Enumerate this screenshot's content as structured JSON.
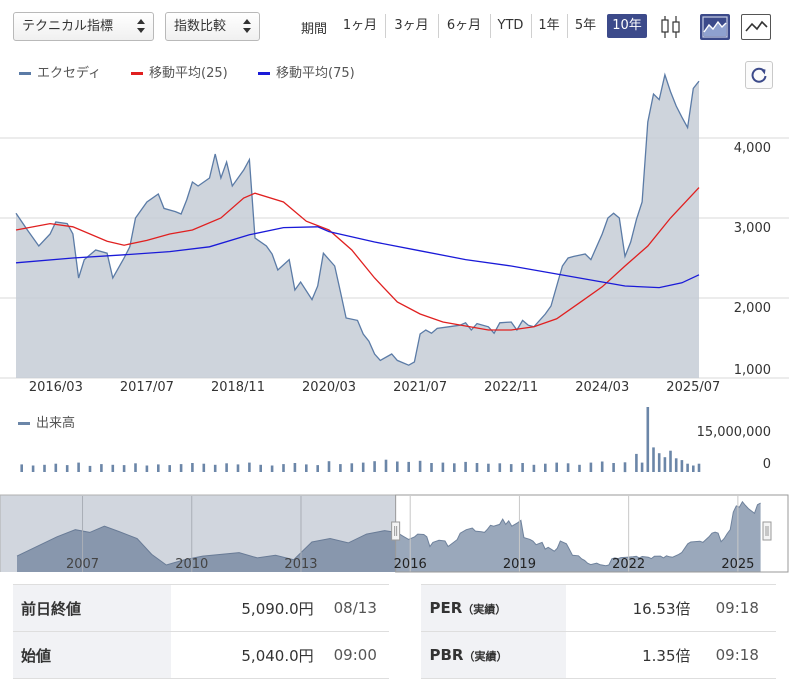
{
  "toolbar": {
    "indicator_dropdown": "テクニカル指標",
    "compare_dropdown": "指数比較",
    "period_label": "期間",
    "periods": [
      "1ヶ月",
      "3ヶ月",
      "6ヶ月",
      "YTD",
      "1年",
      "5年",
      "10年"
    ],
    "active_period": "10年",
    "chart_type_icons": [
      "candlestick-icon",
      "area-chart-icon",
      "line-chart-icon"
    ]
  },
  "legend": {
    "price": "エクセディ",
    "ma25": "移動平均(25)",
    "ma75": "移動平均(75)"
  },
  "volume_legend": "出来高",
  "colors": {
    "price_line": "#5b7ba6",
    "price_fill": "#c6ccd6",
    "ma25": "#e02020",
    "ma75": "#1a1ad8",
    "volume": "#6b86a8",
    "active_button": "#3c4a8a",
    "navigator_fill": "#9aa8bb"
  },
  "chart_data": {
    "type": "area",
    "x_ticks": [
      "2016/03",
      "2017/07",
      "2018/11",
      "2020/03",
      "2021/07",
      "2022/11",
      "2024/03",
      "2025/07"
    ],
    "x_tick_dates": [
      "2016-03",
      "2017-07",
      "2018-11",
      "2020-03",
      "2021-07",
      "2022-11",
      "2024-03",
      "2025-07"
    ],
    "y_ticks": [
      "1,000",
      "2,000",
      "3,000",
      "4,000"
    ],
    "y_tick_values": [
      1000,
      2000,
      3000,
      4000
    ],
    "y_range": [
      1000,
      4900
    ],
    "x_range": [
      "2015-08",
      "2025-08"
    ],
    "grid": true,
    "series": [
      {
        "name": "エクセディ",
        "type": "area",
        "points": [
          [
            "2015-08",
            3060
          ],
          [
            "2015-10",
            2850
          ],
          [
            "2015-12",
            2650
          ],
          [
            "2016-02",
            2800
          ],
          [
            "2016-03",
            2950
          ],
          [
            "2016-05",
            2930
          ],
          [
            "2016-06",
            2800
          ],
          [
            "2016-07",
            2250
          ],
          [
            "2016-08",
            2480
          ],
          [
            "2016-10",
            2600
          ],
          [
            "2016-12",
            2560
          ],
          [
            "2017-01",
            2250
          ],
          [
            "2017-03",
            2500
          ],
          [
            "2017-04",
            2640
          ],
          [
            "2017-05",
            3000
          ],
          [
            "2017-07",
            3200
          ],
          [
            "2017-09",
            3300
          ],
          [
            "2017-10",
            3120
          ],
          [
            "2017-12",
            3080
          ],
          [
            "2018-01",
            3050
          ],
          [
            "2018-02",
            3230
          ],
          [
            "2018-03",
            3450
          ],
          [
            "2018-04",
            3400
          ],
          [
            "2018-06",
            3500
          ],
          [
            "2018-07",
            3800
          ],
          [
            "2018-08",
            3500
          ],
          [
            "2018-09",
            3700
          ],
          [
            "2018-10",
            3400
          ],
          [
            "2018-12",
            3600
          ],
          [
            "2019-01",
            3730
          ],
          [
            "2019-02",
            2750
          ],
          [
            "2019-04",
            2650
          ],
          [
            "2019-05",
            2550
          ],
          [
            "2019-06",
            2350
          ],
          [
            "2019-08",
            2480
          ],
          [
            "2019-09",
            2100
          ],
          [
            "2019-10",
            2200
          ],
          [
            "2019-12",
            1980
          ],
          [
            "2020-01",
            2150
          ],
          [
            "2020-02",
            2560
          ],
          [
            "2020-04",
            2400
          ],
          [
            "2020-05",
            2080
          ],
          [
            "2020-06",
            1750
          ],
          [
            "2020-08",
            1720
          ],
          [
            "2020-09",
            1550
          ],
          [
            "2020-10",
            1460
          ],
          [
            "2020-11",
            1300
          ],
          [
            "2020-12",
            1220
          ],
          [
            "2021-02",
            1300
          ],
          [
            "2021-03",
            1220
          ],
          [
            "2021-05",
            1160
          ],
          [
            "2021-06",
            1200
          ],
          [
            "2021-07",
            1550
          ],
          [
            "2021-08",
            1600
          ],
          [
            "2021-09",
            1560
          ],
          [
            "2021-10",
            1620
          ],
          [
            "2021-12",
            1640
          ],
          [
            "2022-02",
            1660
          ],
          [
            "2022-03",
            1690
          ],
          [
            "2022-04",
            1600
          ],
          [
            "2022-05",
            1680
          ],
          [
            "2022-07",
            1640
          ],
          [
            "2022-08",
            1560
          ],
          [
            "2022-09",
            1690
          ],
          [
            "2022-11",
            1700
          ],
          [
            "2022-12",
            1600
          ],
          [
            "2023-01",
            1720
          ],
          [
            "2023-02",
            1660
          ],
          [
            "2023-03",
            1640
          ],
          [
            "2023-05",
            1800
          ],
          [
            "2023-06",
            1900
          ],
          [
            "2023-08",
            2400
          ],
          [
            "2023-09",
            2500
          ],
          [
            "2023-10",
            2520
          ],
          [
            "2023-12",
            2550
          ],
          [
            "2024-01",
            2480
          ],
          [
            "2024-03",
            2800
          ],
          [
            "2024-04",
            3000
          ],
          [
            "2024-05",
            3060
          ],
          [
            "2024-06",
            3000
          ],
          [
            "2024-07",
            2520
          ],
          [
            "2024-08",
            2700
          ],
          [
            "2024-09",
            2980
          ],
          [
            "2024-10",
            3200
          ],
          [
            "2024-11",
            4200
          ],
          [
            "2024-12",
            4550
          ],
          [
            "2025-01",
            4480
          ],
          [
            "2025-02",
            4790
          ],
          [
            "2025-03",
            4580
          ],
          [
            "2025-04",
            4400
          ],
          [
            "2025-05",
            4260
          ],
          [
            "2025-06",
            4130
          ],
          [
            "2025-07",
            4620
          ],
          [
            "2025-08",
            4710
          ]
        ]
      },
      {
        "name": "移動平均(25)",
        "type": "line",
        "points": [
          [
            "2015-08",
            2850
          ],
          [
            "2016-02",
            2930
          ],
          [
            "2016-06",
            2890
          ],
          [
            "2016-12",
            2710
          ],
          [
            "2017-03",
            2660
          ],
          [
            "2017-07",
            2720
          ],
          [
            "2017-11",
            2800
          ],
          [
            "2018-03",
            2850
          ],
          [
            "2018-08",
            3000
          ],
          [
            "2018-12",
            3250
          ],
          [
            "2019-02",
            3310
          ],
          [
            "2019-07",
            3200
          ],
          [
            "2019-11",
            2960
          ],
          [
            "2020-03",
            2850
          ],
          [
            "2020-07",
            2600
          ],
          [
            "2020-11",
            2250
          ],
          [
            "2021-03",
            1950
          ],
          [
            "2021-07",
            1800
          ],
          [
            "2021-11",
            1700
          ],
          [
            "2022-03",
            1650
          ],
          [
            "2022-07",
            1600
          ],
          [
            "2022-11",
            1600
          ],
          [
            "2023-03",
            1640
          ],
          [
            "2023-07",
            1740
          ],
          [
            "2023-11",
            1940
          ],
          [
            "2024-03",
            2140
          ],
          [
            "2024-07",
            2400
          ],
          [
            "2024-11",
            2650
          ],
          [
            "2025-03",
            3000
          ],
          [
            "2025-08",
            3380
          ]
        ]
      },
      {
        "name": "移動平均(75)",
        "type": "line",
        "points": [
          [
            "2015-08",
            2440
          ],
          [
            "2016-06",
            2500
          ],
          [
            "2017-03",
            2540
          ],
          [
            "2017-11",
            2580
          ],
          [
            "2018-06",
            2640
          ],
          [
            "2019-01",
            2790
          ],
          [
            "2019-07",
            2880
          ],
          [
            "2020-01",
            2890
          ],
          [
            "2020-03",
            2830
          ],
          [
            "2020-11",
            2700
          ],
          [
            "2021-07",
            2590
          ],
          [
            "2022-03",
            2480
          ],
          [
            "2022-11",
            2400
          ],
          [
            "2023-07",
            2300
          ],
          [
            "2024-03",
            2200
          ],
          [
            "2024-07",
            2150
          ],
          [
            "2025-01",
            2130
          ],
          [
            "2025-05",
            2190
          ],
          [
            "2025-08",
            2290
          ]
        ]
      }
    ],
    "volume": {
      "name": "出来高",
      "y_ticks": [
        "15,000,000",
        "0"
      ],
      "y_tick_values": [
        15000000,
        0
      ],
      "y_range": [
        0,
        18000000
      ],
      "points": [
        [
          "2015-09",
          2100000
        ],
        [
          "2015-11",
          1800000
        ],
        [
          "2016-01",
          2000000
        ],
        [
          "2016-03",
          2300000
        ],
        [
          "2016-05",
          1900000
        ],
        [
          "2016-07",
          2600000
        ],
        [
          "2016-09",
          1700000
        ],
        [
          "2016-11",
          2200000
        ],
        [
          "2017-01",
          2000000
        ],
        [
          "2017-03",
          1900000
        ],
        [
          "2017-05",
          2400000
        ],
        [
          "2017-07",
          1800000
        ],
        [
          "2017-09",
          2100000
        ],
        [
          "2017-11",
          1900000
        ],
        [
          "2018-01",
          2200000
        ],
        [
          "2018-03",
          2500000
        ],
        [
          "2018-05",
          2300000
        ],
        [
          "2018-07",
          2000000
        ],
        [
          "2018-09",
          2400000
        ],
        [
          "2018-11",
          2100000
        ],
        [
          "2019-01",
          2600000
        ],
        [
          "2019-03",
          2000000
        ],
        [
          "2019-05",
          1800000
        ],
        [
          "2019-07",
          2200000
        ],
        [
          "2019-09",
          2500000
        ],
        [
          "2019-11",
          2100000
        ],
        [
          "2020-01",
          1900000
        ],
        [
          "2020-03",
          3000000
        ],
        [
          "2020-05",
          2200000
        ],
        [
          "2020-07",
          2400000
        ],
        [
          "2020-09",
          2600000
        ],
        [
          "2020-11",
          3000000
        ],
        [
          "2021-01",
          3400000
        ],
        [
          "2021-03",
          2900000
        ],
        [
          "2021-05",
          2800000
        ],
        [
          "2021-07",
          3100000
        ],
        [
          "2021-09",
          2500000
        ],
        [
          "2021-11",
          2600000
        ],
        [
          "2022-01",
          2400000
        ],
        [
          "2022-03",
          2800000
        ],
        [
          "2022-05",
          2500000
        ],
        [
          "2022-07",
          2300000
        ],
        [
          "2022-09",
          2400000
        ],
        [
          "2022-11",
          2200000
        ],
        [
          "2023-01",
          2500000
        ],
        [
          "2023-03",
          2000000
        ],
        [
          "2023-05",
          2300000
        ],
        [
          "2023-07",
          2600000
        ],
        [
          "2023-09",
          2400000
        ],
        [
          "2023-11",
          2000000
        ],
        [
          "2024-01",
          2600000
        ],
        [
          "2024-03",
          2900000
        ],
        [
          "2024-05",
          2500000
        ],
        [
          "2024-07",
          2700000
        ],
        [
          "2024-09",
          5000000
        ],
        [
          "2024-10",
          2600000
        ],
        [
          "2024-11",
          18000000
        ],
        [
          "2024-12",
          6800000
        ],
        [
          "2025-01",
          5200000
        ],
        [
          "2025-02",
          4100000
        ],
        [
          "2025-03",
          5900000
        ],
        [
          "2025-04",
          3800000
        ],
        [
          "2025-05",
          3300000
        ],
        [
          "2025-06",
          2300000
        ],
        [
          "2025-07",
          1800000
        ],
        [
          "2025-08",
          2300000
        ]
      ]
    },
    "navigator": {
      "x_ticks": [
        "2007",
        "2010",
        "2013",
        "2016",
        "2019",
        "2022",
        "2025"
      ],
      "x_tick_years": [
        2007,
        2010,
        2013,
        2016,
        2019,
        2022,
        2025
      ],
      "x_range_years": [
        2005.2,
        2025.8
      ],
      "selection_start_year": 2015.6,
      "y_range": [
        800,
        5000
      ],
      "history_points": [
        [
          2005.2,
          1700
        ],
        [
          2005.8,
          2300
        ],
        [
          2006.3,
          2800
        ],
        [
          2006.8,
          3200
        ],
        [
          2007.2,
          3050
        ],
        [
          2007.6,
          3400
        ],
        [
          2008.0,
          3100
        ],
        [
          2008.5,
          2700
        ],
        [
          2008.9,
          1800
        ],
        [
          2009.3,
          1200
        ],
        [
          2009.8,
          1500
        ],
        [
          2010.3,
          1700
        ],
        [
          2010.8,
          1800
        ],
        [
          2011.3,
          1900
        ],
        [
          2011.8,
          1600
        ],
        [
          2012.3,
          1750
        ],
        [
          2012.8,
          1500
        ],
        [
          2013.3,
          2500
        ],
        [
          2013.8,
          2700
        ],
        [
          2014.3,
          2450
        ],
        [
          2014.8,
          2950
        ],
        [
          2015.3,
          3150
        ],
        [
          2015.6,
          3050
        ]
      ]
    }
  },
  "table": {
    "rows": [
      {
        "label": "前日終値",
        "value": "5,090.0円",
        "time": "08/13",
        "label2": "PER",
        "label2_sub": "（実績）",
        "value2": "16.53倍",
        "time2": "09:18"
      },
      {
        "label": "始値",
        "value": "5,040.0円",
        "time": "09:00",
        "label2": "PBR",
        "label2_sub": "（実績）",
        "value2": "1.35倍",
        "time2": "09:18"
      }
    ]
  }
}
